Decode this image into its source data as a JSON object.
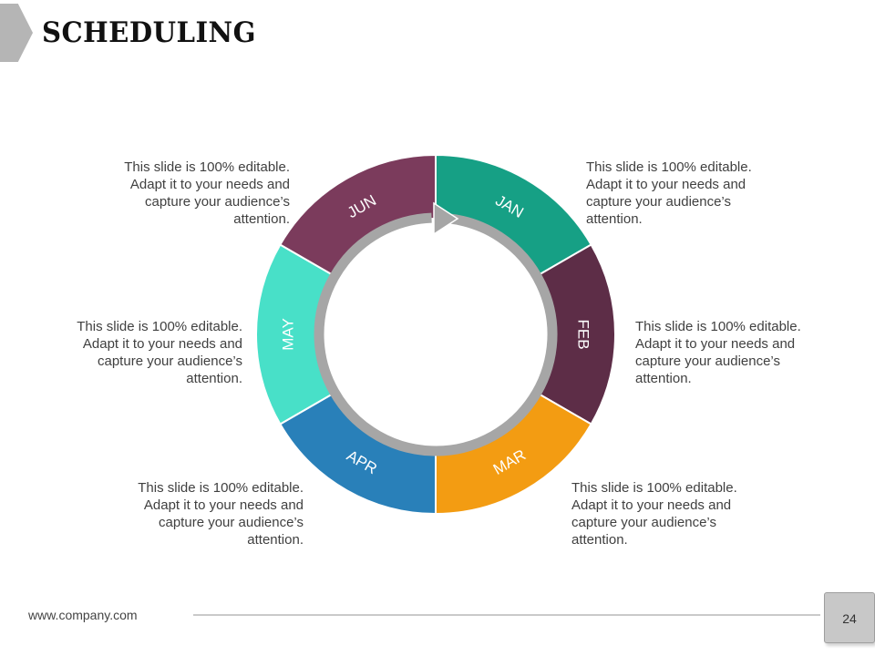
{
  "title": "SCHEDULING",
  "colors": {
    "jan": "#16a085",
    "feb": "#5d2d47",
    "mar": "#f39c12",
    "apr": "#2980b9",
    "may": "#48e0c8",
    "jun": "#7b3b5c",
    "inner_arrow": "#a6a6a6"
  },
  "cycle": {
    "months": [
      {
        "label": "JAN",
        "color": "#16a085"
      },
      {
        "label": "FEB",
        "color": "#5d2d47"
      },
      {
        "label": "MAR",
        "color": "#f39c12"
      },
      {
        "label": "APR",
        "color": "#2980b9"
      },
      {
        "label": "MAY",
        "color": "#48e0c8"
      },
      {
        "label": "JUN",
        "color": "#7b3b5c"
      }
    ]
  },
  "descriptions": {
    "jan": [
      "This slide is 100% editable.",
      "Adapt it to your  needs and",
      "capture your audience’s",
      "attention."
    ],
    "feb": [
      "This slide is 100% editable.",
      "Adapt it to your  needs and",
      "capture your audience’s",
      "attention."
    ],
    "mar": [
      "This slide is 100% editable.",
      "Adapt it to your  needs and",
      "capture your audience’s",
      "attention."
    ],
    "apr": [
      "This slide is 100% editable.",
      "Adapt it to your  needs and",
      "capture your audience’s",
      "attention."
    ],
    "may": [
      "This slide is 100% editable.",
      "Adapt it to your  needs and",
      "capture your audience’s",
      "attention."
    ],
    "jun": [
      "This slide is 100% editable.",
      "Adapt it to your  needs and",
      "capture your audience’s",
      "attention."
    ]
  },
  "footer": {
    "url": "www.company.com",
    "page": "24"
  }
}
